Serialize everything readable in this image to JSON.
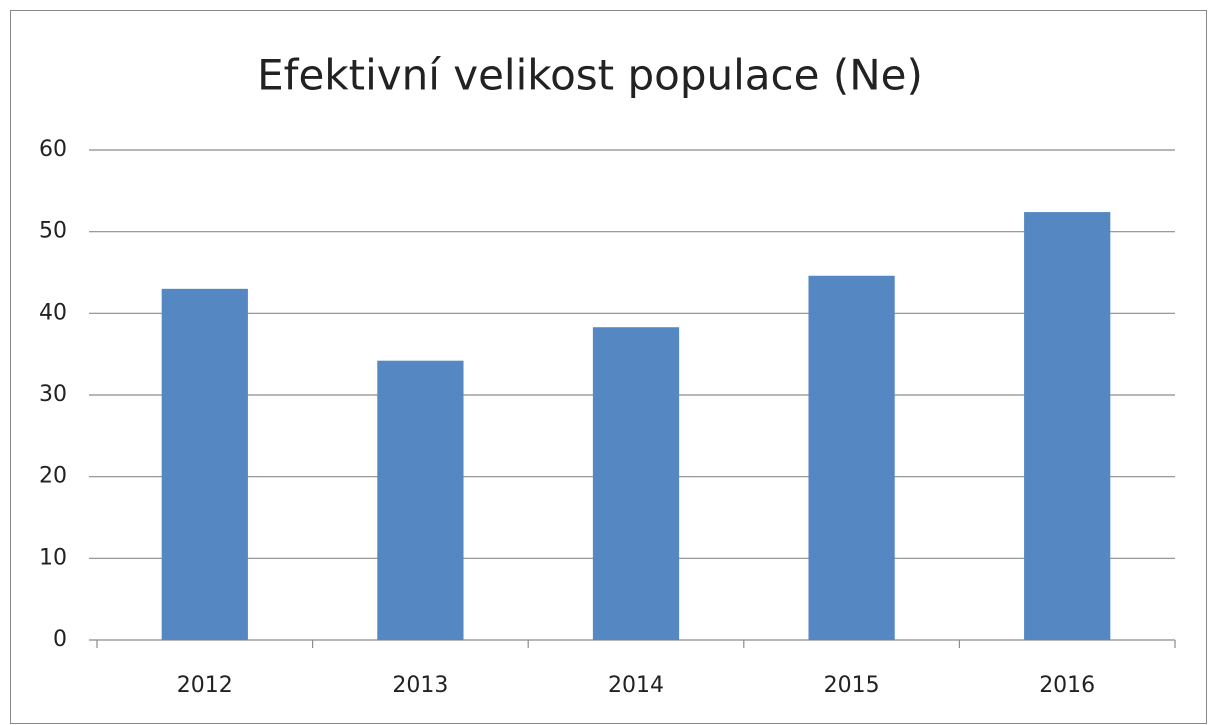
{
  "chart_data": {
    "type": "bar",
    "title": "Efektivní velikost populace (Ne)",
    "categories": [
      "2012",
      "2013",
      "2014",
      "2015",
      "2016"
    ],
    "values": [
      43,
      34.2,
      38.3,
      44.6,
      52.4
    ],
    "color": "#5588c2",
    "ylim": [
      0,
      60
    ],
    "yticks": [
      0,
      10,
      20,
      30,
      40,
      50,
      60
    ],
    "grid": true
  }
}
